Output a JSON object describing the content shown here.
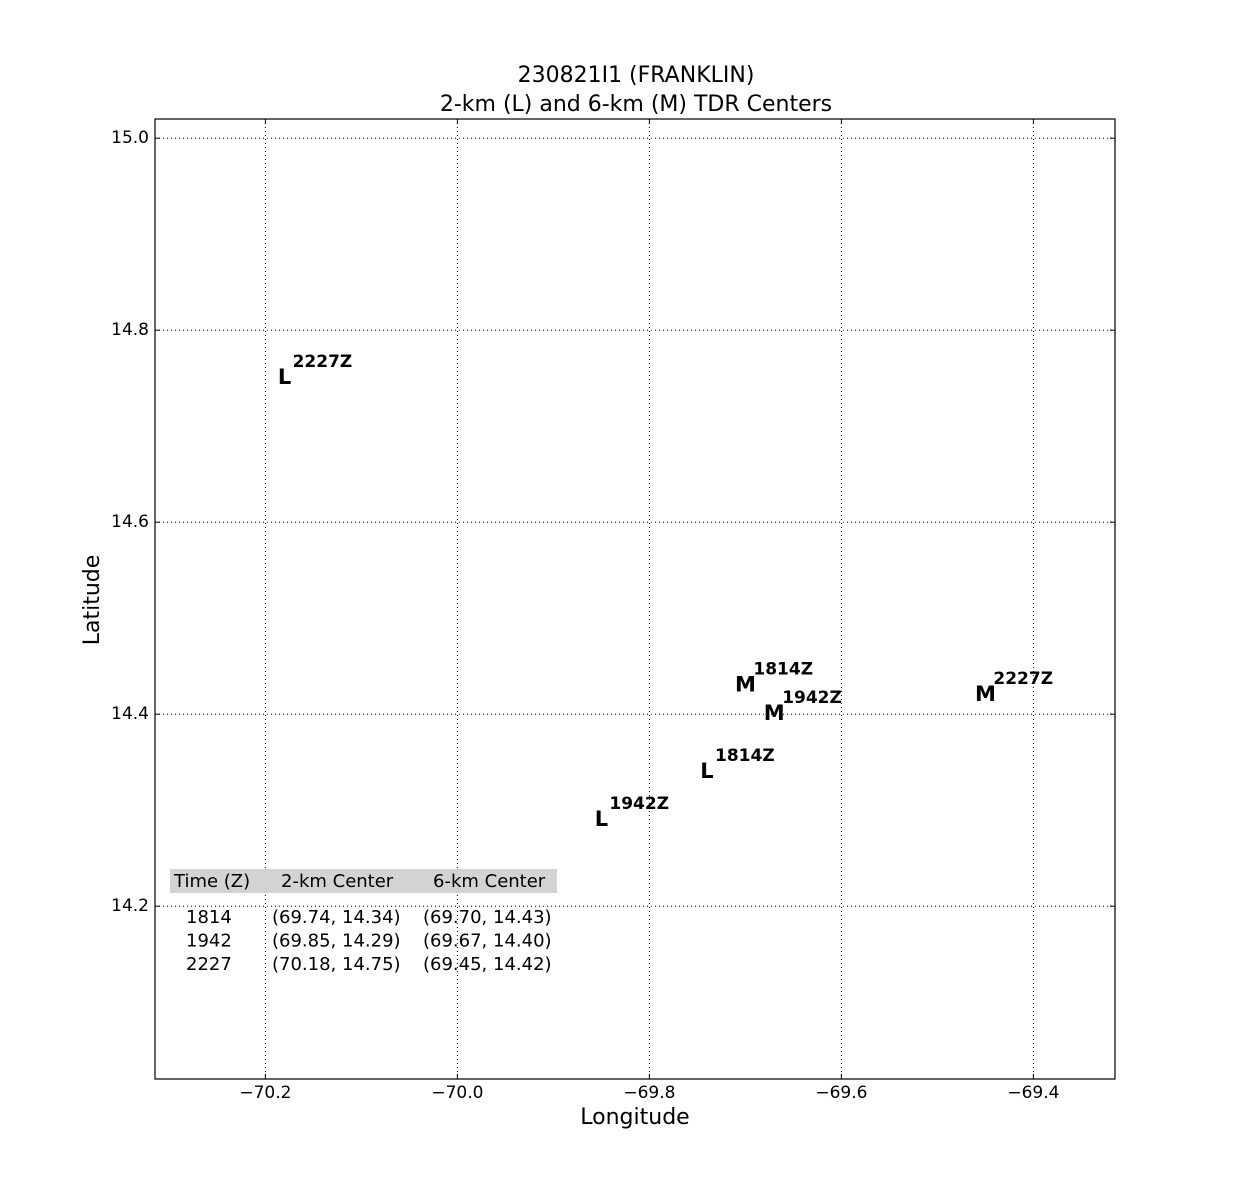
{
  "chart_data": {
    "type": "scatter",
    "title": "230821I1 (FRANKLIN)",
    "subtitle": "2-km (L) and 6-km (M) TDR Centers",
    "x_label": "Longitude",
    "y_label": "Latitude",
    "xlim": [
      -70.315,
      -69.315
    ],
    "ylim": [
      14.02,
      15.02
    ],
    "xticks": [
      {
        "value": -70.2,
        "label": "−70.2"
      },
      {
        "value": -70.0,
        "label": "−70.0"
      },
      {
        "value": -69.8,
        "label": "−69.8"
      },
      {
        "value": -69.6,
        "label": "−69.6"
      },
      {
        "value": -69.4,
        "label": "−69.4"
      }
    ],
    "yticks": [
      {
        "value": 14.2,
        "label": "14.2"
      },
      14.4,
      14.6,
      14.8,
      {
        "value": 15.0,
        "label": "15.0"
      }
    ],
    "grid": true,
    "colors": [
      "#b3cfe6",
      "#8db6dc",
      "#5e9acb"
    ],
    "series": [
      {
        "marker": "L",
        "x": [
          -69.74,
          -69.85,
          -70.18
        ],
        "y": [
          14.34,
          14.29,
          14.75
        ],
        "labels": [
          "1814Z",
          "1942Z",
          "2227Z"
        ]
      },
      {
        "marker": "M",
        "x": [
          -69.7,
          -69.67,
          -69.45
        ],
        "y": [
          14.43,
          14.4,
          14.42
        ],
        "labels": [
          "1814Z",
          "1942Z",
          "2227Z"
        ]
      }
    ],
    "table": {
      "header": [
        "Time (Z)",
        "2-km Center",
        "6-km Center"
      ],
      "rows": [
        [
          "1814",
          "(69.74, 14.34)",
          "(69.70, 14.43)"
        ],
        [
          "1942",
          "(69.85, 14.29)",
          "(69.67, 14.40)"
        ],
        [
          "2227",
          "(70.18, 14.75)",
          "(69.45, 14.42)"
        ]
      ]
    }
  }
}
